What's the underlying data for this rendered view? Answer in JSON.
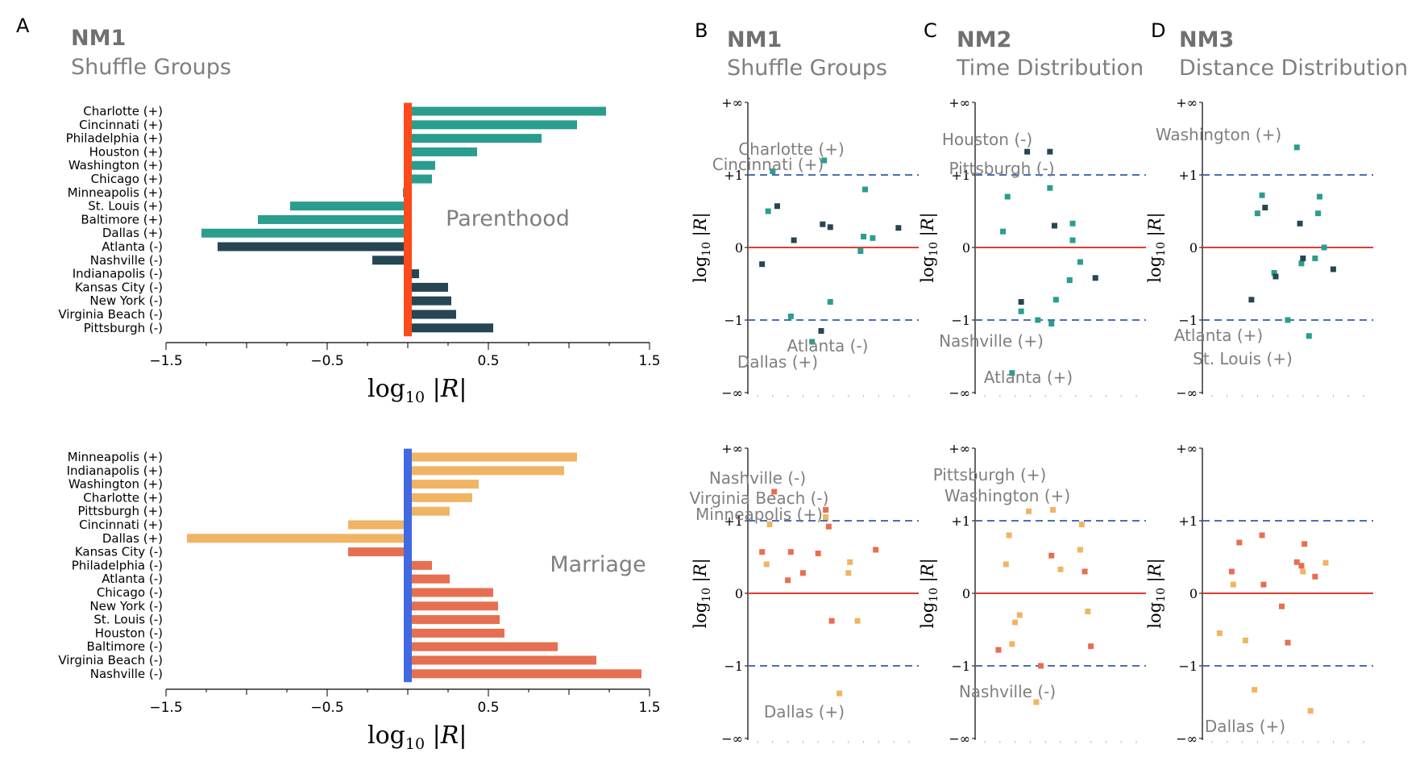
{
  "figure": {
    "panel_a": {
      "letter": "A",
      "model": "NM1",
      "subtitle": "Shuffle Groups"
    },
    "panel_b": {
      "letter": "B",
      "model": "NM1",
      "subtitle": "Shuffle Groups"
    },
    "panel_c": {
      "letter": "C",
      "model": "NM2",
      "subtitle": "Time Distribution"
    },
    "panel_d": {
      "letter": "D",
      "model": "NM3",
      "subtitle": "Distance Distribution"
    }
  },
  "colors": {
    "parent_plus": "#2a9d8f",
    "parent_minus": "#264653",
    "marriage_plus": "#f0b465",
    "marriage_minus": "#e76f51",
    "parent_ref": "#fc4a1a",
    "marriage_ref": "#4169e1",
    "zero_line": "#e03c31",
    "dash_line": "#4a6fb5",
    "label_gray": "#7f7f7f"
  },
  "chart_data": [
    {
      "id": "bar-parenthood",
      "type": "bar",
      "orientation": "horizontal",
      "title": "Parenthood",
      "xlabel": "log10 |R|",
      "xlim": [
        -1.5,
        1.5
      ],
      "xticks": [
        -1.5,
        -0.5,
        0.5,
        1.5
      ],
      "xtick_labels": [
        "−1.5",
        "−0.5",
        "0.5",
        "1.5"
      ],
      "categories": [
        "Charlotte (+)",
        "Cincinnati (+)",
        "Philadelphia (+)",
        "Houston (+)",
        "Washington (+)",
        "Chicago (+)",
        "Minneapolis (+)",
        "St. Louis (+)",
        "Baltimore (+)",
        "Dallas (+)",
        "Atlanta (-)",
        "Nashville (-)",
        "Indianapolis (-)",
        "Kansas City (-)",
        "New York (-)",
        "Virginia Beach (-)",
        "Pittsburgh (-)"
      ],
      "values": [
        1.23,
        1.05,
        0.83,
        0.43,
        0.17,
        0.15,
        -0.03,
        -0.73,
        -0.93,
        -1.28,
        -1.18,
        -0.22,
        0.07,
        0.25,
        0.27,
        0.3,
        0.53
      ],
      "groups": [
        "+",
        "+",
        "+",
        "+",
        "+",
        "+",
        "+",
        "+",
        "+",
        "+",
        "-",
        "-",
        "-",
        "-",
        "-",
        "-",
        "-"
      ]
    },
    {
      "id": "bar-marriage",
      "type": "bar",
      "orientation": "horizontal",
      "title": "Marriage",
      "xlabel": "log10 |R|",
      "xlim": [
        -1.5,
        1.5
      ],
      "xticks": [
        -1.5,
        -0.5,
        0.5,
        1.5
      ],
      "xtick_labels": [
        "−1.5",
        "−0.5",
        "0.5",
        "1.5"
      ],
      "categories": [
        "Minneapolis (+)",
        "Indianapolis (+)",
        "Washington (+)",
        "Charlotte (+)",
        "Pittsburgh (+)",
        "Cincinnati (+)",
        "Dallas (+)",
        "Kansas City (-)",
        "Philadelphia (-)",
        "Atlanta (-)",
        "Chicago (-)",
        "New York (-)",
        "St. Louis (-)",
        "Houston (-)",
        "Baltimore (-)",
        "Virginia Beach (-)",
        "Nashville (-)"
      ],
      "values": [
        1.05,
        0.97,
        0.44,
        0.4,
        0.26,
        -0.37,
        -1.37,
        -0.37,
        0.15,
        0.26,
        0.53,
        0.56,
        0.57,
        0.6,
        0.93,
        1.17,
        1.45
      ],
      "groups": [
        "+",
        "+",
        "+",
        "+",
        "+",
        "+",
        "+",
        "-",
        "-",
        "-",
        "-",
        "-",
        "-",
        "-",
        "-",
        "-",
        "-"
      ]
    },
    {
      "id": "scatter-nm1-parent",
      "type": "scatter",
      "ylabel": "log10 |R|",
      "ylim": [
        "-inf",
        "+inf"
      ],
      "yticks": [
        "+∞",
        "+1",
        "0",
        "−1",
        "−∞"
      ],
      "points": [
        {
          "x": 0.7,
          "y": 0.5,
          "g": "+"
        },
        {
          "x": 1.0,
          "y": 1.05,
          "g": "+"
        },
        {
          "x": 2.2,
          "y": -0.95,
          "g": "+"
        },
        {
          "x": 3.6,
          "y": -1.3,
          "g": "+"
        },
        {
          "x": 4.4,
          "y": 1.2,
          "g": "+"
        },
        {
          "x": 4.8,
          "y": -0.75,
          "g": "+"
        },
        {
          "x": 6.8,
          "y": -0.05,
          "g": "+"
        },
        {
          "x": 7.0,
          "y": 0.15,
          "g": "+"
        },
        {
          "x": 7.1,
          "y": 0.8,
          "g": "+"
        },
        {
          "x": 7.6,
          "y": 0.13,
          "g": "+"
        },
        {
          "x": 0.3,
          "y": -0.23,
          "g": "-"
        },
        {
          "x": 1.3,
          "y": 0.57,
          "g": "-"
        },
        {
          "x": 2.4,
          "y": 0.1,
          "g": "-"
        },
        {
          "x": 4.2,
          "y": -1.15,
          "g": "-"
        },
        {
          "x": 4.3,
          "y": 0.32,
          "g": "-"
        },
        {
          "x": 4.8,
          "y": 0.28,
          "g": "-"
        },
        {
          "x": 9.3,
          "y": 0.27,
          "g": "-"
        }
      ],
      "annotations": [
        "Charlotte (+)",
        "Cincinnati (+)",
        "Atlanta (-)",
        "Dallas (+)"
      ]
    },
    {
      "id": "scatter-nm2-parent",
      "type": "scatter",
      "ylabel": "log10 |R|",
      "ylim": [
        "-inf",
        "+inf"
      ],
      "yticks": [
        "+∞",
        "+1",
        "0",
        "−1",
        "−∞"
      ],
      "points": [
        {
          "x": 1.2,
          "y": 0.22,
          "g": "+"
        },
        {
          "x": 1.5,
          "y": 0.7,
          "g": "+"
        },
        {
          "x": 2.4,
          "y": -0.88,
          "g": "+"
        },
        {
          "x": 3.5,
          "y": -1.0,
          "g": "+"
        },
        {
          "x": 4.3,
          "y": 0.82,
          "g": "+"
        },
        {
          "x": 4.4,
          "y": -1.05,
          "g": "+"
        },
        {
          "x": 4.7,
          "y": -0.72,
          "g": "+"
        },
        {
          "x": 5.6,
          "y": -0.45,
          "g": "+"
        },
        {
          "x": 5.8,
          "y": 0.1,
          "g": "+"
        },
        {
          "x": 5.8,
          "y": 0.33,
          "g": "+"
        },
        {
          "x": 6.3,
          "y": -0.2,
          "g": "+"
        },
        {
          "x": 1.8,
          "y": -1.73,
          "g": "+"
        },
        {
          "x": 2.4,
          "y": -0.75,
          "g": "-"
        },
        {
          "x": 2.8,
          "y": 1.32,
          "g": "-"
        },
        {
          "x": 4.3,
          "y": 1.32,
          "g": "-"
        },
        {
          "x": 4.6,
          "y": 0.3,
          "g": "-"
        },
        {
          "x": 7.3,
          "y": -0.42,
          "g": "-"
        }
      ],
      "annotations": [
        "Houston (-)",
        "Pittsburgh (-)",
        "Nashville (+)",
        "Atlanta (+)"
      ]
    },
    {
      "id": "scatter-nm3-parent",
      "type": "scatter",
      "ylabel": "log10 |R|",
      "ylim": [
        "-inf",
        "+inf"
      ],
      "yticks": [
        "+∞",
        "+1",
        "0",
        "−1",
        "−∞"
      ],
      "points": [
        {
          "x": 3.0,
          "y": 0.47,
          "g": "+"
        },
        {
          "x": 3.3,
          "y": 0.72,
          "g": "+"
        },
        {
          "x": 4.1,
          "y": -0.35,
          "g": "+"
        },
        {
          "x": 5.0,
          "y": -1.0,
          "g": "+"
        },
        {
          "x": 5.6,
          "y": 1.38,
          "g": "+"
        },
        {
          "x": 5.9,
          "y": -0.22,
          "g": "+"
        },
        {
          "x": 6.4,
          "y": -1.22,
          "g": "+"
        },
        {
          "x": 6.8,
          "y": -0.15,
          "g": "+"
        },
        {
          "x": 7.0,
          "y": 0.47,
          "g": "+"
        },
        {
          "x": 7.1,
          "y": 0.7,
          "g": "+"
        },
        {
          "x": 7.4,
          "y": 0.0,
          "g": "+"
        },
        {
          "x": 2.6,
          "y": -0.72,
          "g": "-"
        },
        {
          "x": 3.5,
          "y": 0.55,
          "g": "-"
        },
        {
          "x": 4.2,
          "y": -0.4,
          "g": "-"
        },
        {
          "x": 5.8,
          "y": 0.33,
          "g": "-"
        },
        {
          "x": 6.0,
          "y": -0.15,
          "g": "-"
        },
        {
          "x": 8.0,
          "y": -0.3,
          "g": "-"
        }
      ],
      "annotations": [
        "Washington (+)",
        "Atlanta (+)",
        "St. Louis (+)"
      ]
    },
    {
      "id": "scatter-nm1-marriage",
      "type": "scatter",
      "ylabel": "log10 |R|",
      "ylim": [
        "-inf",
        "+inf"
      ],
      "yticks": [
        "+∞",
        "+1",
        "0",
        "−1",
        "−∞"
      ],
      "points": [
        {
          "x": 0.6,
          "y": 0.4,
          "g": "+"
        },
        {
          "x": 0.8,
          "y": 0.95,
          "g": "+"
        },
        {
          "x": 4.5,
          "y": 1.05,
          "g": "+"
        },
        {
          "x": 6.0,
          "y": 0.28,
          "g": "+"
        },
        {
          "x": 6.1,
          "y": 0.43,
          "g": "+"
        },
        {
          "x": 6.6,
          "y": -0.38,
          "g": "+"
        },
        {
          "x": 5.4,
          "y": -1.38,
          "g": "+"
        },
        {
          "x": 0.3,
          "y": 0.57,
          "g": "-"
        },
        {
          "x": 1.1,
          "y": 1.4,
          "g": "-"
        },
        {
          "x": 2.0,
          "y": 0.18,
          "g": "-"
        },
        {
          "x": 2.2,
          "y": 0.57,
          "g": "-"
        },
        {
          "x": 3.0,
          "y": 0.28,
          "g": "-"
        },
        {
          "x": 4.0,
          "y": 0.55,
          "g": "-"
        },
        {
          "x": 4.5,
          "y": 1.15,
          "g": "-"
        },
        {
          "x": 4.7,
          "y": 0.92,
          "g": "-"
        },
        {
          "x": 4.9,
          "y": -0.38,
          "g": "-"
        },
        {
          "x": 7.8,
          "y": 0.6,
          "g": "-"
        }
      ],
      "annotations": [
        "Nashville (-)",
        "Virginia Beach (-)",
        "Minneapolis (+)",
        "Dallas (+)"
      ]
    },
    {
      "id": "scatter-nm2-marriage",
      "type": "scatter",
      "ylabel": "log10 |R|",
      "ylim": [
        "-inf",
        "+inf"
      ],
      "yticks": [
        "+∞",
        "+1",
        "0",
        "−1",
        "−∞"
      ],
      "points": [
        {
          "x": 1.4,
          "y": 0.4,
          "g": "+"
        },
        {
          "x": 1.6,
          "y": 0.8,
          "g": "+"
        },
        {
          "x": 1.8,
          "y": -0.7,
          "g": "+"
        },
        {
          "x": 2.0,
          "y": -0.4,
          "g": "+"
        },
        {
          "x": 2.3,
          "y": -0.3,
          "g": "+"
        },
        {
          "x": 2.9,
          "y": 1.13,
          "g": "+"
        },
        {
          "x": 4.5,
          "y": 1.15,
          "g": "+"
        },
        {
          "x": 5.0,
          "y": 0.33,
          "g": "+"
        },
        {
          "x": 6.3,
          "y": 0.6,
          "g": "+"
        },
        {
          "x": 6.4,
          "y": 0.95,
          "g": "+"
        },
        {
          "x": 6.8,
          "y": -0.25,
          "g": "+"
        },
        {
          "x": 3.4,
          "y": -1.5,
          "g": "+"
        },
        {
          "x": 0.9,
          "y": -0.78,
          "g": "-"
        },
        {
          "x": 3.7,
          "y": -1.0,
          "g": "-"
        },
        {
          "x": 4.4,
          "y": 0.52,
          "g": "-"
        },
        {
          "x": 6.6,
          "y": 0.3,
          "g": "-"
        },
        {
          "x": 7.0,
          "y": -0.73,
          "g": "-"
        }
      ],
      "annotations": [
        "Pittsburgh (+)",
        "Washington (+)",
        "Nashville (-)"
      ]
    },
    {
      "id": "scatter-nm3-marriage",
      "type": "scatter",
      "ylabel": "log10 |R|",
      "ylim": [
        "-inf",
        "+inf"
      ],
      "yticks": [
        "+∞",
        "+1",
        "0",
        "−1",
        "−∞"
      ],
      "points": [
        {
          "x": 0.5,
          "y": -0.55,
          "g": "+"
        },
        {
          "x": 1.4,
          "y": 0.12,
          "g": "+"
        },
        {
          "x": 2.2,
          "y": -0.65,
          "g": "+"
        },
        {
          "x": 2.8,
          "y": -1.33,
          "g": "+"
        },
        {
          "x": 6.0,
          "y": 0.3,
          "g": "+"
        },
        {
          "x": 6.5,
          "y": -1.62,
          "g": "+"
        },
        {
          "x": 7.5,
          "y": 0.42,
          "g": "+"
        },
        {
          "x": 1.3,
          "y": 0.3,
          "g": "-"
        },
        {
          "x": 1.8,
          "y": 0.7,
          "g": "-"
        },
        {
          "x": 3.3,
          "y": 0.8,
          "g": "-"
        },
        {
          "x": 3.4,
          "y": 0.12,
          "g": "-"
        },
        {
          "x": 4.6,
          "y": -0.18,
          "g": "-"
        },
        {
          "x": 5.0,
          "y": -0.68,
          "g": "-"
        },
        {
          "x": 5.6,
          "y": 0.43,
          "g": "-"
        },
        {
          "x": 5.9,
          "y": 0.38,
          "g": "-"
        },
        {
          "x": 6.1,
          "y": 0.68,
          "g": "-"
        },
        {
          "x": 6.8,
          "y": 0.23,
          "g": "-"
        }
      ],
      "annotations": [
        "Dallas (+)"
      ]
    }
  ]
}
